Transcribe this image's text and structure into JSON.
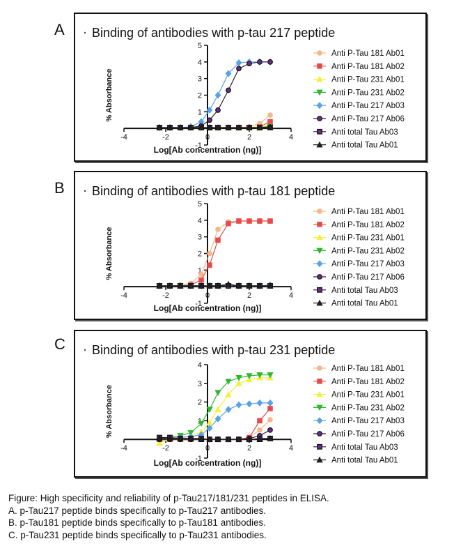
{
  "caption": {
    "lines": [
      "Figure: High specificity and reliability of p-Tau217/181/231 peptides in ELISA.",
      "A. p-Tau217 peptide binds specifically to p-Tau217 antibodies.",
      "B. p-Tau181 peptide binds specifically to p-Tau181 antibodies.",
      "C. p-Tau231 peptide binds specifically to p-Tau231 antibodies."
    ]
  },
  "legend_styles": [
    {
      "name": "Anti P-Tau 181 Ab01",
      "color": "#f2b88a",
      "marker": "circle"
    },
    {
      "name": "Anti P-Tau 181 Ab02",
      "color": "#e84a4a",
      "marker": "square"
    },
    {
      "name": "Anti P-Tau 231 Ab01",
      "color": "#f5f03a",
      "marker": "triangle-up"
    },
    {
      "name": "Anti P-Tau 231 Ab02",
      "color": "#2db82d",
      "marker": "triangle-down"
    },
    {
      "name": "Anti P-Tau 217 Ab03",
      "color": "#5aa2e6",
      "marker": "diamond"
    },
    {
      "name": "Anti P-Tau 217 Ab06",
      "color": "#6a2a8e",
      "marker": "circle-dark"
    },
    {
      "name": "Anti total Tau Ab03",
      "color": "#6a2a8e",
      "marker": "square-dark"
    },
    {
      "name": "Anti total Tau Ab01",
      "color": "#222222",
      "marker": "triangle-dark"
    }
  ],
  "chart_data": [
    {
      "panel": "A",
      "type": "line",
      "title": "Binding of antibodies with p-tau 217 peptide",
      "xlabel": "Log[Ab concentration (ng)]",
      "ylabel": "% Absorbance",
      "xlim": [
        -4,
        4
      ],
      "ylim": [
        -1,
        5
      ],
      "xticks": [
        -4,
        -2,
        0,
        2,
        4
      ],
      "yticks": [
        -1,
        1,
        2,
        3,
        4,
        5
      ],
      "x": [
        -2.3,
        -1.8,
        -1.3,
        -0.8,
        -0.3,
        0.1,
        0.5,
        1.0,
        1.5,
        2.0,
        2.5,
        3.0
      ],
      "series": [
        {
          "name": "Anti P-Tau 181 Ab01",
          "values": [
            0.05,
            0.05,
            0.05,
            0.05,
            0.05,
            0.05,
            0.05,
            0.05,
            0.05,
            0.1,
            0.3,
            0.8
          ]
        },
        {
          "name": "Anti P-Tau 181 Ab02",
          "values": [
            0.05,
            0.05,
            0.05,
            0.05,
            0.05,
            0.05,
            0.05,
            0.05,
            0.05,
            0.05,
            0.1,
            0.4
          ]
        },
        {
          "name": "Anti P-Tau 231 Ab01",
          "values": [
            0.05,
            0.05,
            0.05,
            0.05,
            0.05,
            0.05,
            0.05,
            0.05,
            0.05,
            0.05,
            0.1,
            0.15
          ]
        },
        {
          "name": "Anti P-Tau 231 Ab02",
          "values": [
            0.05,
            0.05,
            0.05,
            0.05,
            0.05,
            0.05,
            0.05,
            0.05,
            0.05,
            0.05,
            0.05,
            0.1
          ]
        },
        {
          "name": "Anti P-Tau 217 Ab03",
          "values": [
            0.05,
            0.05,
            0.05,
            0.1,
            0.4,
            1.1,
            2.0,
            3.3,
            3.95,
            4.0,
            4.0,
            4.0
          ]
        },
        {
          "name": "Anti P-Tau 217 Ab06",
          "values": [
            0.05,
            0.05,
            0.05,
            0.05,
            0.15,
            0.5,
            1.1,
            2.3,
            3.6,
            3.9,
            4.0,
            4.0
          ]
        },
        {
          "name": "Anti total Tau Ab03",
          "values": [
            0.05,
            0.05,
            0.05,
            0.05,
            0.05,
            0.05,
            0.05,
            0.05,
            0.05,
            0.05,
            0.05,
            0.05
          ]
        },
        {
          "name": "Anti total Tau Ab01",
          "values": [
            0.05,
            0.05,
            0.05,
            0.05,
            0.05,
            0.05,
            0.05,
            0.05,
            0.05,
            0.05,
            0.05,
            0.1
          ]
        }
      ]
    },
    {
      "panel": "B",
      "type": "line",
      "title": "Binding of antibodies with p-tau 181 peptide",
      "xlabel": "Log[Ab concentration (ng)]",
      "ylabel": "% Absorbance",
      "xlim": [
        -4,
        4
      ],
      "ylim": [
        -1,
        5
      ],
      "xticks": [
        -4,
        -2,
        0,
        2,
        4
      ],
      "yticks": [
        -1,
        1,
        2,
        3,
        4,
        5
      ],
      "x": [
        -2.3,
        -1.8,
        -1.3,
        -0.8,
        -0.3,
        0.1,
        0.5,
        1.0,
        1.5,
        2.0,
        2.5,
        3.0
      ],
      "series": [
        {
          "name": "Anti P-Tau 181 Ab01",
          "values": [
            0.05,
            0.05,
            0.1,
            0.2,
            0.75,
            2.0,
            3.45,
            3.9,
            3.95,
            3.95,
            3.95,
            3.95
          ]
        },
        {
          "name": "Anti P-Tau 181 Ab02",
          "values": [
            0.05,
            0.05,
            0.05,
            0.1,
            0.4,
            1.3,
            2.8,
            3.8,
            3.95,
            3.95,
            3.95,
            3.95
          ]
        },
        {
          "name": "Anti P-Tau 231 Ab01",
          "values": [
            0.05,
            0.05,
            0.05,
            0.05,
            0.05,
            0.05,
            0.05,
            0.05,
            0.05,
            0.05,
            0.05,
            0.1
          ]
        },
        {
          "name": "Anti P-Tau 231 Ab02",
          "values": [
            0.05,
            0.05,
            0.05,
            0.05,
            0.05,
            0.05,
            0.05,
            0.05,
            0.05,
            0.05,
            0.05,
            0.05
          ]
        },
        {
          "name": "Anti P-Tau 217 Ab03",
          "values": [
            0.05,
            0.05,
            0.05,
            0.05,
            0.05,
            0.05,
            0.05,
            0.05,
            0.05,
            0.05,
            0.05,
            0.1
          ]
        },
        {
          "name": "Anti P-Tau 217 Ab06",
          "values": [
            0.05,
            0.05,
            0.05,
            0.05,
            0.05,
            0.05,
            0.05,
            0.05,
            0.05,
            0.05,
            0.05,
            0.05
          ]
        },
        {
          "name": "Anti total Tau Ab03",
          "values": [
            0.05,
            0.05,
            0.05,
            0.05,
            0.05,
            0.05,
            0.05,
            0.05,
            0.05,
            0.05,
            0.05,
            0.05
          ]
        },
        {
          "name": "Anti total Tau Ab01",
          "values": [
            0.05,
            0.05,
            0.05,
            0.05,
            0.05,
            0.05,
            0.05,
            0.15,
            0.05,
            0.05,
            0.05,
            0.05
          ]
        }
      ]
    },
    {
      "panel": "C",
      "type": "line",
      "title": "Binding of antibodies with p-tau 231 peptide",
      "xlabel": "Log[Ab concentration (ng)]",
      "ylabel": "% Absorbance",
      "xlim": [
        -4,
        4
      ],
      "ylim": [
        -1,
        4
      ],
      "xticks": [
        -4,
        -2,
        0,
        2,
        4
      ],
      "yticks": [
        -1,
        1,
        2,
        3,
        4
      ],
      "x": [
        -2.3,
        -1.8,
        -1.3,
        -0.8,
        -0.3,
        0.1,
        0.5,
        1.0,
        1.5,
        2.0,
        2.5,
        3.0
      ],
      "series": [
        {
          "name": "Anti P-Tau 181 Ab01",
          "values": [
            0.0,
            0.0,
            0.0,
            0.0,
            0.0,
            0.0,
            0.0,
            0.0,
            0.0,
            0.1,
            0.5,
            1.05
          ]
        },
        {
          "name": "Anti P-Tau 181 Ab02",
          "values": [
            0.0,
            0.0,
            0.0,
            0.0,
            0.0,
            0.0,
            0.0,
            0.0,
            0.0,
            0.1,
            1.0,
            1.65
          ]
        },
        {
          "name": "Anti P-Tau 231 Ab01",
          "values": [
            -0.2,
            0.05,
            0.1,
            0.2,
            0.4,
            0.9,
            1.6,
            2.4,
            3.0,
            3.2,
            3.3,
            3.3
          ]
        },
        {
          "name": "Anti P-Tau 231 Ab02",
          "values": [
            0.05,
            0.1,
            0.2,
            0.35,
            0.85,
            1.6,
            2.5,
            3.1,
            3.3,
            3.4,
            3.45,
            3.45
          ]
        },
        {
          "name": "Anti P-Tau 217 Ab03",
          "values": [
            0.05,
            0.05,
            0.1,
            0.15,
            0.25,
            0.6,
            1.1,
            1.6,
            1.85,
            1.9,
            1.95,
            1.95
          ]
        },
        {
          "name": "Anti P-Tau 217 Ab06",
          "values": [
            0.0,
            0.0,
            0.0,
            0.0,
            0.0,
            0.0,
            0.0,
            0.0,
            0.0,
            0.05,
            0.2,
            0.5
          ]
        },
        {
          "name": "Anti total Tau Ab03",
          "values": [
            0.1,
            0.1,
            0.05,
            0.05,
            0.05,
            0.0,
            0.0,
            0.0,
            0.0,
            0.0,
            0.05,
            0.05
          ]
        },
        {
          "name": "Anti total Tau Ab01",
          "values": [
            0.05,
            0.05,
            0.05,
            0.05,
            0.0,
            0.0,
            0.0,
            0.0,
            0.0,
            0.0,
            0.0,
            0.05
          ]
        }
      ]
    }
  ]
}
